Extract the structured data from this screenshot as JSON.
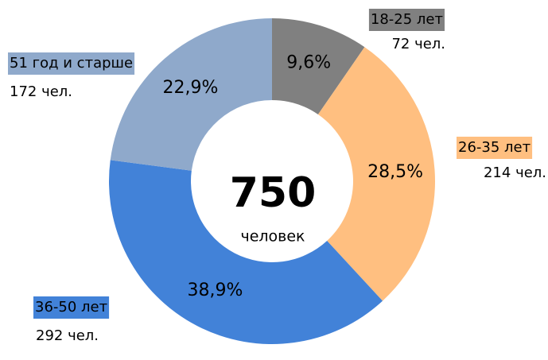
{
  "chart_data": {
    "type": "donut",
    "categories": [
      "18-25 лет",
      "26-35 лет",
      "36-50 лет",
      "51 год и старше"
    ],
    "values": [
      9.6,
      28.5,
      38.9,
      22.9
    ],
    "value_labels": [
      "9,6%",
      "28,5%",
      "38,9%",
      "22,9%"
    ],
    "counts": [
      72,
      214,
      292,
      172
    ],
    "count_labels": [
      "72 чел.",
      "214 чел.",
      "292 чел.",
      "172 чел."
    ],
    "colors": [
      "#808080",
      "#ffbf80",
      "#4282d8",
      "#8fa9cb"
    ],
    "total": 750,
    "total_label": "человек"
  }
}
